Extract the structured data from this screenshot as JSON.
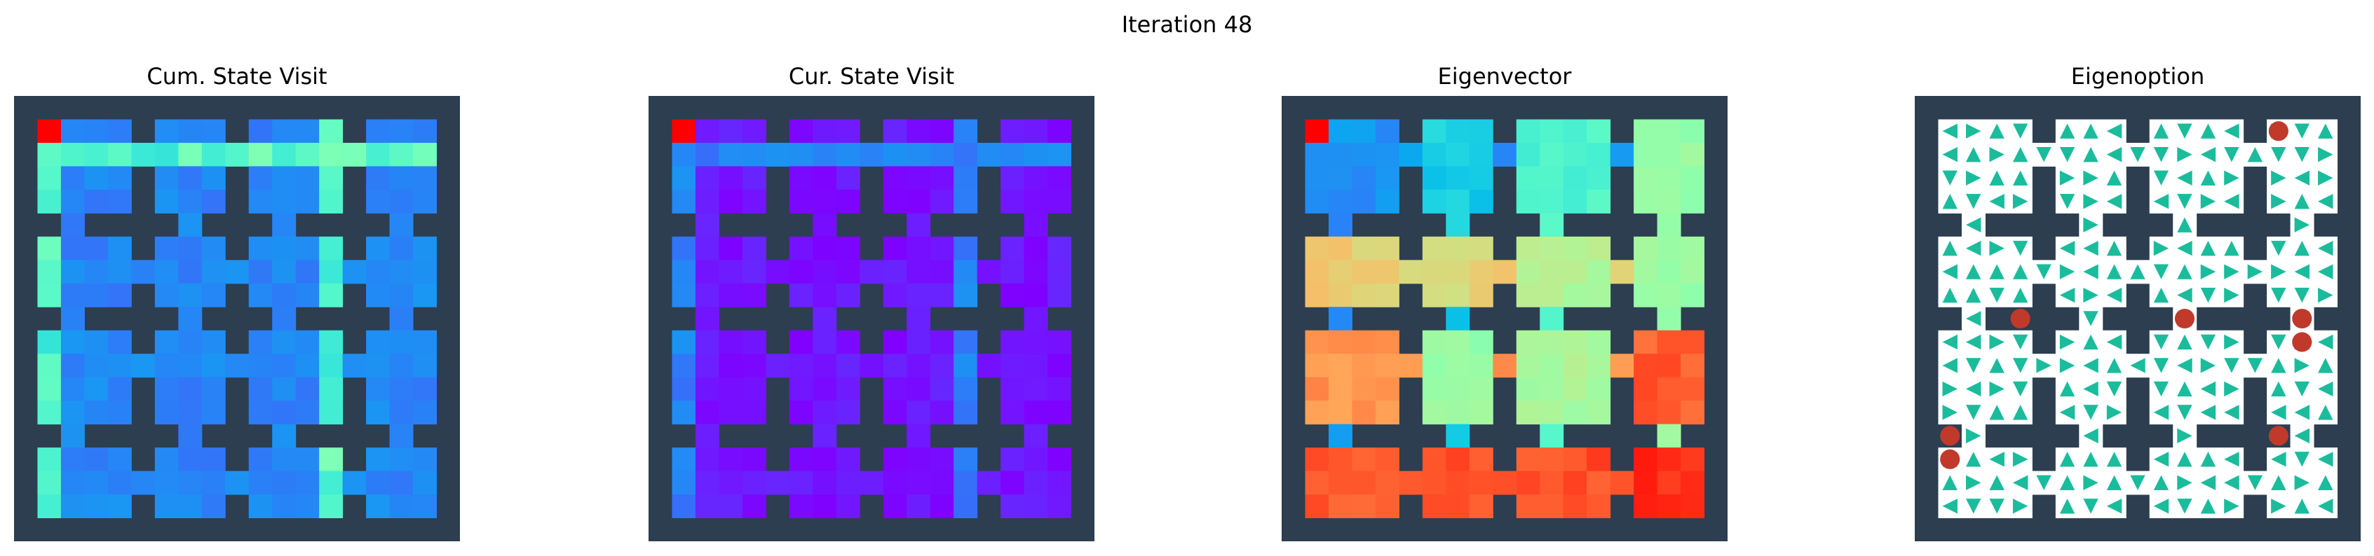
{
  "figure": {
    "suptitle": "Iteration 48",
    "colors": {
      "wall": "#2c3e50",
      "floor": "#ffffff",
      "arrow": "#1abc9c",
      "terminal": "#c0392b",
      "colormap": "rainbow"
    }
  },
  "chart_data": [
    {
      "type": "heatmap",
      "title": "Cum. State Visit",
      "grid": "4x4 rooms of 3x3 cells connected by doorways",
      "dominant_level": 0.15,
      "highlight_path_level": 0.5,
      "peak_cell": "top-left",
      "peak_level": 1.0
    },
    {
      "type": "heatmap",
      "title": "Cur. State Visit",
      "grid": "4x4 rooms of 3x3 cells connected by doorways",
      "dominant_level": 0.0,
      "highlight_path_level": 0.2,
      "peak_cell": "top-left",
      "peak_level": 1.0
    },
    {
      "type": "heatmap",
      "title": "Eigenvector",
      "grid": "4x4 rooms of 3x3 cells connected by doorways",
      "room_levels": [
        [
          0.2,
          0.3,
          0.4,
          0.55
        ],
        [
          0.7,
          0.68,
          0.6,
          0.55
        ],
        [
          0.8,
          0.55,
          0.58,
          0.88
        ],
        [
          0.88,
          0.9,
          0.9,
          0.95
        ]
      ],
      "peak_level": 1.0
    },
    {
      "type": "table",
      "title": "Eigenoption",
      "grid": "4x4 rooms of 3x3 cells connected by doorways",
      "cell_content": "action arrows",
      "terminal_states": 8
    }
  ]
}
